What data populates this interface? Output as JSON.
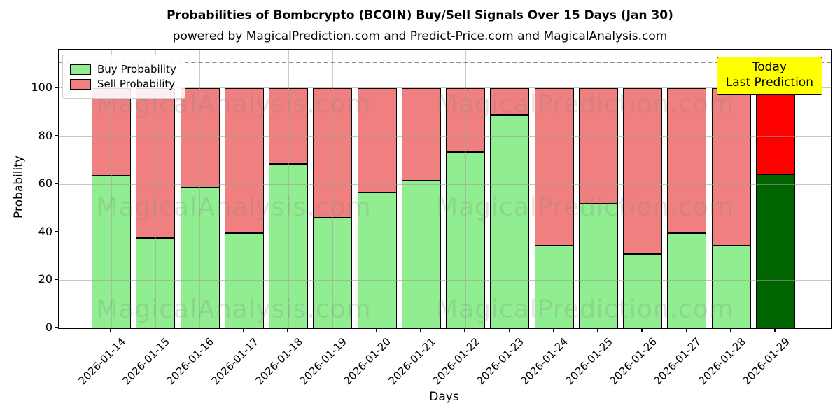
{
  "title": "Probabilities of Bombcrypto (BCOIN) Buy/Sell Signals Over 15 Days (Jan 30)",
  "subtitle": "powered by MagicalPrediction.com and Predict-Price.com and MagicalAnalysis.com",
  "axes": {
    "xlabel": "Days",
    "ylabel": "Probability",
    "yticks": [
      0,
      20,
      40,
      60,
      80,
      100
    ],
    "ylim": [
      0,
      116
    ],
    "dashed_line_y": 111,
    "grid": true
  },
  "legend": [
    {
      "label": "Buy Probability",
      "color": "#90ee90"
    },
    {
      "label": "Sell Probability",
      "color": "#f08080"
    }
  ],
  "annotation": {
    "line1": "Today",
    "line2": "Last Prediction",
    "bg_color": "#ffff00"
  },
  "watermarks": {
    "left_text": "MagicalAnalysis.com",
    "right_text": "MagicalPrediction.com"
  },
  "chart_data": {
    "type": "bar",
    "stacked": true,
    "categories": [
      "2026-01-14",
      "2026-01-15",
      "2026-01-16",
      "2026-01-17",
      "2026-01-18",
      "2026-01-19",
      "2026-01-20",
      "2026-01-21",
      "2026-01-22",
      "2026-01-23",
      "2026-01-24",
      "2026-01-25",
      "2026-01-26",
      "2026-01-27",
      "2026-01-28",
      "2026-01-29"
    ],
    "series": [
      {
        "name": "Buy Probability",
        "color": "#90ee90",
        "values": [
          63.5,
          37.5,
          58.5,
          39.5,
          68.5,
          46,
          56.5,
          61.5,
          73.5,
          89,
          34.5,
          52,
          31,
          39.5,
          34.5,
          64
        ]
      },
      {
        "name": "Sell Probability",
        "color": "#f08080",
        "values": [
          36.5,
          62.5,
          41.5,
          60.5,
          31.5,
          54,
          43.5,
          38.5,
          26.5,
          11,
          65.5,
          48,
          69,
          60.5,
          65.5,
          36
        ]
      }
    ],
    "last_bar_colors": {
      "buy": "#006400",
      "sell": "#ff0000"
    },
    "bar_edge_color": "#000000",
    "legend_position": "upper left"
  }
}
